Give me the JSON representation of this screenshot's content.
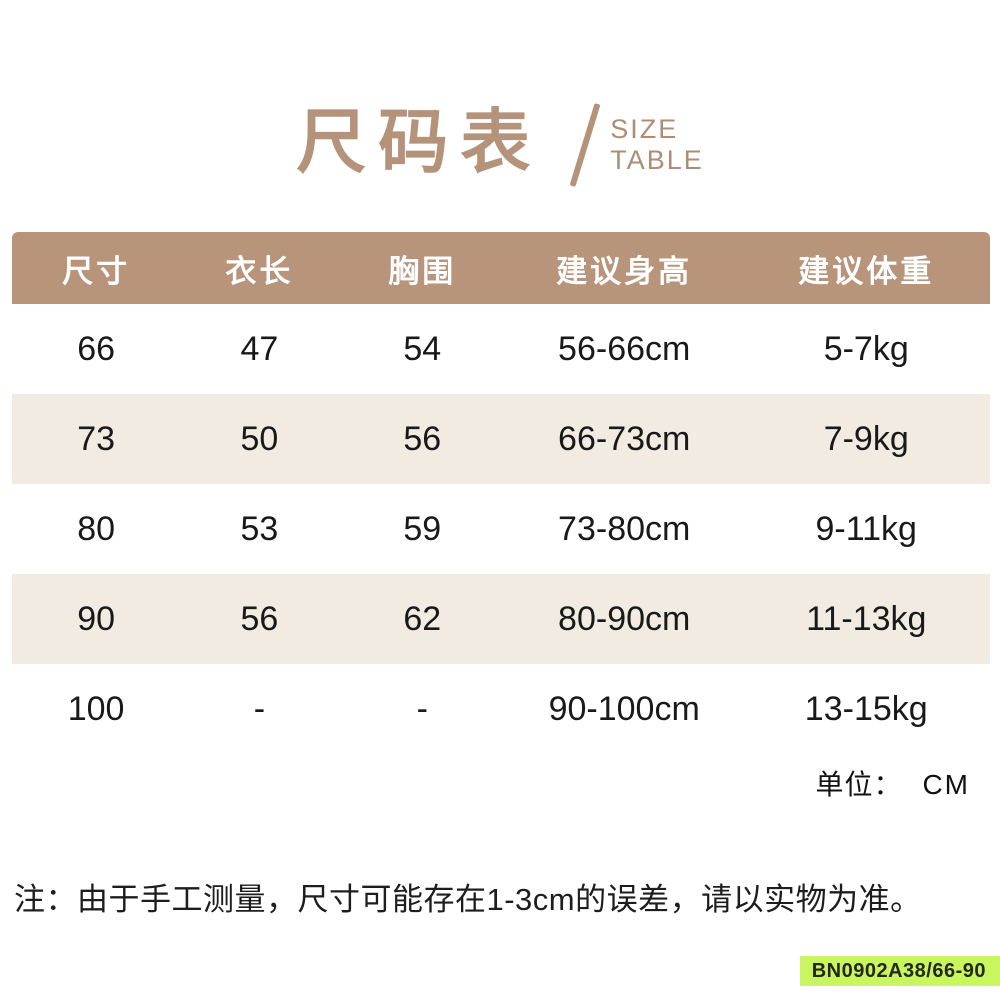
{
  "title": {
    "main": "尺码表",
    "sub_line1": "SIZE",
    "sub_line2": "TABLE"
  },
  "table": {
    "headers": [
      "尺寸",
      "衣长",
      "胸围",
      "建议身高",
      "建议体重"
    ],
    "rows": [
      [
        "66",
        "47",
        "54",
        "56-66cm",
        "5-7kg"
      ],
      [
        "73",
        "50",
        "56",
        "66-73cm",
        "7-9kg"
      ],
      [
        "80",
        "53",
        "59",
        "73-80cm",
        "9-11kg"
      ],
      [
        "90",
        "56",
        "62",
        "80-90cm",
        "11-13kg"
      ],
      [
        "100",
        "-",
        "-",
        "90-100cm",
        "13-15kg"
      ]
    ]
  },
  "unit": {
    "label": "单位：",
    "value": "CM"
  },
  "note": "注：由于手工测量，尺寸可能存在1-3cm的误差，请以实物为准。",
  "sku_badge": "BN0902A38/66-90",
  "colors": {
    "accent_tan": "#b7947a",
    "title_tan": "#b5927a",
    "stripe_beige": "#f1ebe2",
    "badge_green": "#c9f55e",
    "header_text": "#ffffff",
    "body_text": "#191919"
  }
}
